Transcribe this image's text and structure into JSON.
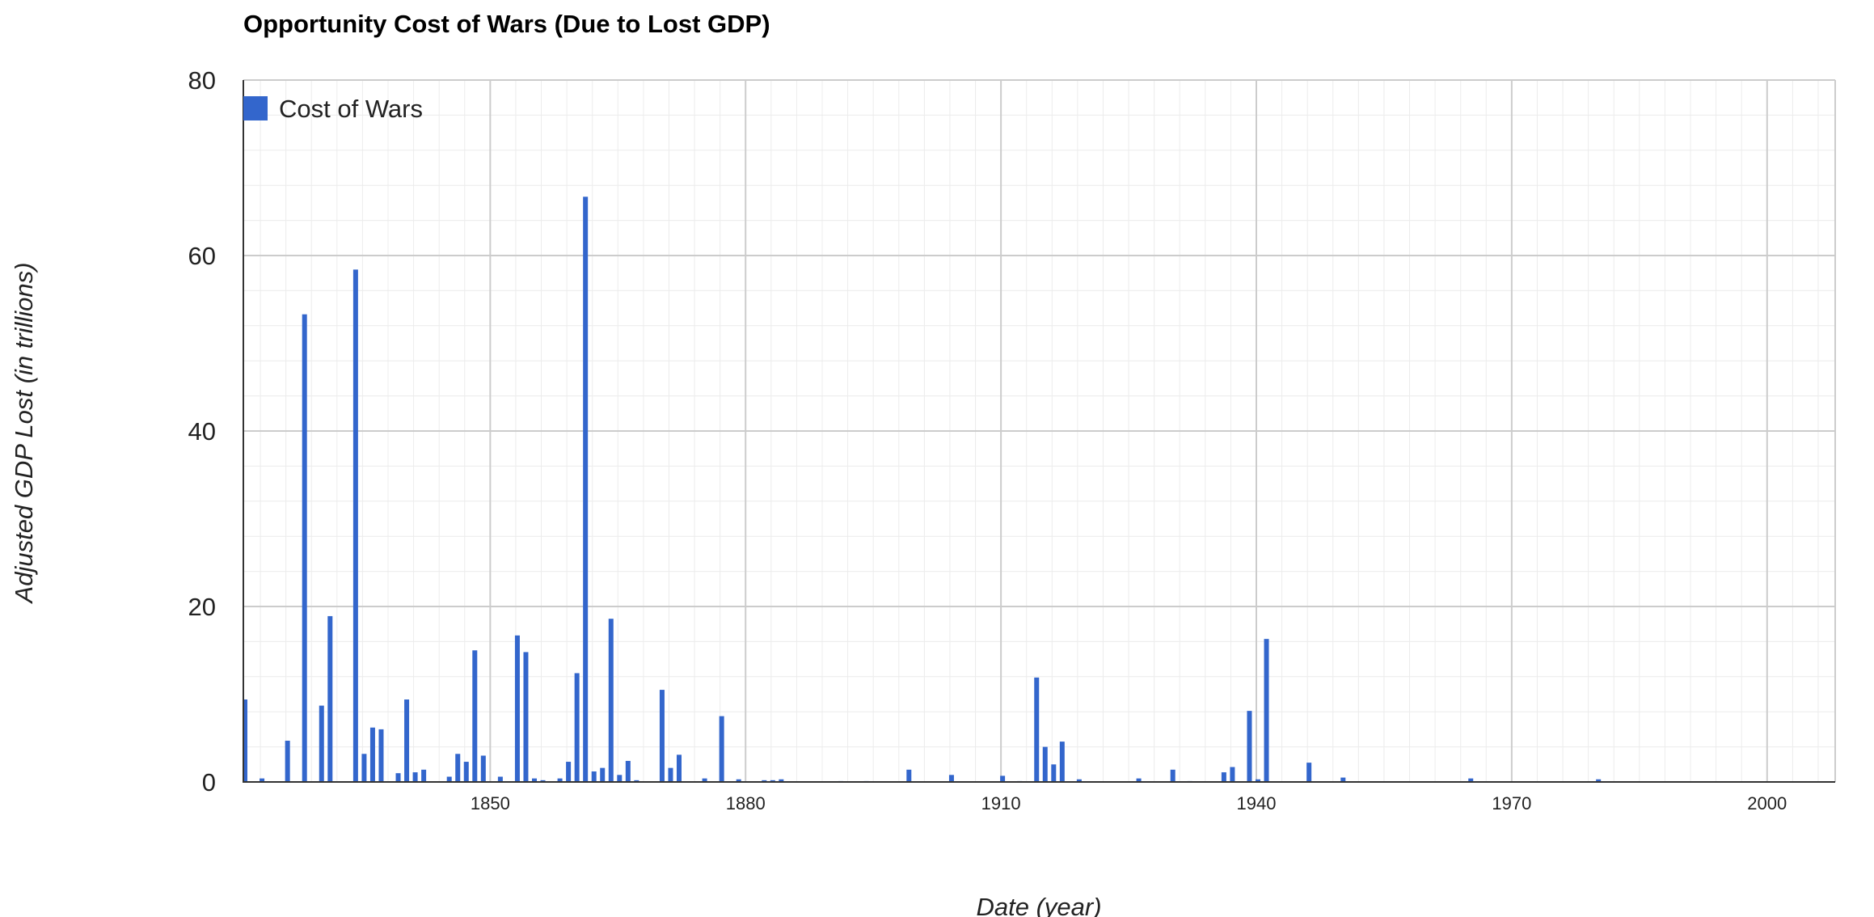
{
  "chart_data": {
    "type": "bar",
    "title": "Opportunity Cost of Wars (Due to Lost GDP)",
    "xlabel": "Date (year)",
    "ylabel": "Adjusted GDP Lost (in trillions)",
    "xlim": [
      1821,
      2008
    ],
    "ylim": [
      0,
      80
    ],
    "x_ticks": [
      1850,
      1880,
      1910,
      1940,
      1970,
      2000
    ],
    "y_ticks": [
      0,
      20,
      40,
      60,
      80
    ],
    "grid": true,
    "legend_position": "top-left",
    "series": [
      {
        "name": "Cost of Wars",
        "color": "#3366cc",
        "points": [
          [
            1821,
            9.4
          ],
          [
            1823,
            0.4
          ],
          [
            1826,
            4.7
          ],
          [
            1828,
            53.3
          ],
          [
            1830,
            8.7
          ],
          [
            1831,
            18.9
          ],
          [
            1834,
            58.4
          ],
          [
            1835,
            3.2
          ],
          [
            1836,
            6.2
          ],
          [
            1837,
            6.0
          ],
          [
            1839,
            1.0
          ],
          [
            1840,
            9.4
          ],
          [
            1841,
            1.1
          ],
          [
            1842,
            1.4
          ],
          [
            1845,
            0.6
          ],
          [
            1846,
            3.2
          ],
          [
            1847,
            2.3
          ],
          [
            1848,
            15.0
          ],
          [
            1849,
            3.0
          ],
          [
            1851,
            0.6
          ],
          [
            1853,
            16.7
          ],
          [
            1854,
            14.8
          ],
          [
            1855,
            0.4
          ],
          [
            1856,
            0.2
          ],
          [
            1858,
            0.4
          ],
          [
            1859,
            2.3
          ],
          [
            1860,
            12.4
          ],
          [
            1861,
            66.7
          ],
          [
            1862,
            1.2
          ],
          [
            1863,
            1.6
          ],
          [
            1864,
            18.6
          ],
          [
            1865,
            0.8
          ],
          [
            1866,
            2.4
          ],
          [
            1867,
            0.2
          ],
          [
            1870,
            10.5
          ],
          [
            1871,
            1.6
          ],
          [
            1872,
            3.1
          ],
          [
            1875,
            0.4
          ],
          [
            1877,
            7.5
          ],
          [
            1879,
            0.3
          ],
          [
            1882,
            0.2
          ],
          [
            1883,
            0.2
          ],
          [
            1884,
            0.3
          ],
          [
            1891,
            0.1
          ],
          [
            1894,
            0.1
          ],
          [
            1899,
            1.4
          ],
          [
            1904,
            0.8
          ],
          [
            1910,
            0.7
          ],
          [
            1912,
            0.1
          ],
          [
            1914,
            11.9
          ],
          [
            1915,
            4.0
          ],
          [
            1916,
            2.0
          ],
          [
            1917,
            4.6
          ],
          [
            1919,
            0.3
          ],
          [
            1926,
            0.4
          ],
          [
            1930,
            1.4
          ],
          [
            1932,
            0.1
          ],
          [
            1936,
            1.1
          ],
          [
            1937,
            1.7
          ],
          [
            1939,
            8.1
          ],
          [
            1940,
            0.3
          ],
          [
            1941,
            16.3
          ],
          [
            1946,
            2.2
          ],
          [
            1950,
            0.5
          ],
          [
            1965,
            0.4
          ],
          [
            1980,
            0.3
          ]
        ]
      }
    ]
  }
}
